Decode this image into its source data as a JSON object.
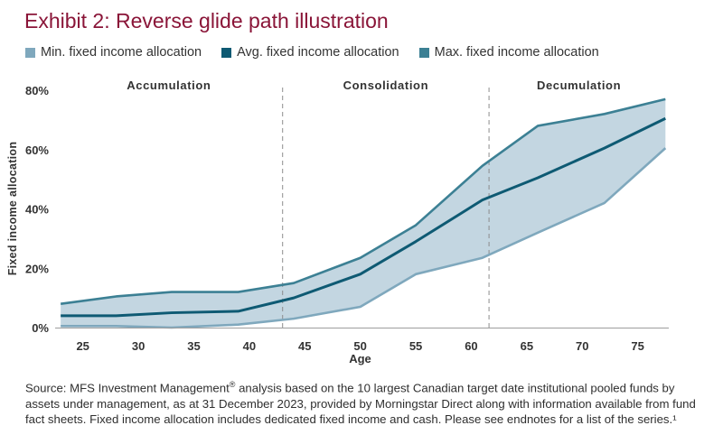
{
  "title": "Exhibit 2: Reverse glide path illustration",
  "legend": [
    {
      "label": "Min. fixed income allocation",
      "color": "#7fa8bd"
    },
    {
      "label": "Avg. fixed income allocation",
      "color": "#0e5a73"
    },
    {
      "label": "Max. fixed income allocation",
      "color": "#3c8094"
    }
  ],
  "colors": {
    "band_fill": "#c3d6e1",
    "axis": "#9e9e9e",
    "divider": "#8c8c8c"
  },
  "phases": [
    {
      "label": "Accumulation"
    },
    {
      "label": "Consolidation"
    },
    {
      "label": "Decumulation"
    }
  ],
  "source": {
    "text": "Source: MFS Investment Management",
    "mark": "®",
    "rest": " analysis based on the 10 largest Canadian target date institutional pooled funds by assets under management, as at 31 December 2023, provided by Morningstar Direct along with information available from fund fact sheets. Fixed income allocation includes dedicated fixed income and cash.  Please see endnotes for a list of the series.",
    "note": "¹"
  },
  "chart_data": {
    "type": "area",
    "title": "Exhibit 2: Reverse glide path illustration",
    "xlabel": "Age",
    "ylabel": "Fixed income allocation",
    "x_ticks": [
      25,
      30,
      35,
      40,
      45,
      50,
      55,
      60,
      65,
      70,
      75
    ],
    "y_ticks": [
      "0%",
      "20%",
      "40%",
      "60%",
      "80%"
    ],
    "y_tick_values": [
      0,
      20,
      40,
      60,
      80
    ],
    "xlim": [
      22.5,
      77.8
    ],
    "ylim": [
      0,
      80
    ],
    "grid": false,
    "legend_position": "top",
    "phase_boundaries": [
      43,
      61.6
    ],
    "x": [
      23,
      28,
      33,
      39,
      44,
      50,
      55,
      61,
      66,
      72,
      77.5
    ],
    "series": [
      {
        "name": "Min. fixed income allocation",
        "values": [
          0.5,
          0.5,
          0,
          1,
          3,
          7,
          18,
          23.5,
          32,
          42,
          60.5
        ]
      },
      {
        "name": "Avg. fixed income allocation",
        "values": [
          4,
          4,
          5,
          5.5,
          10,
          18,
          29,
          43,
          50.5,
          60.5,
          70.5
        ]
      },
      {
        "name": "Max. fixed income allocation",
        "values": [
          8,
          10.5,
          12,
          12,
          15,
          23.5,
          34.5,
          54.5,
          68,
          72,
          77
        ]
      }
    ]
  }
}
